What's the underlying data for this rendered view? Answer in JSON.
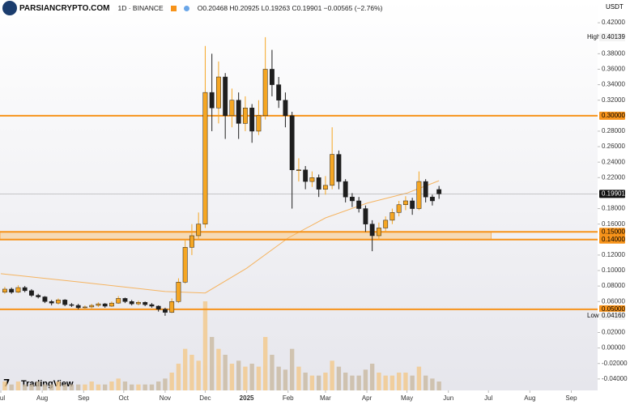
{
  "header": {
    "logo": "PARSIANCRYPTO.COM",
    "symbol": "1D · BINANCE",
    "ohlc": "O0.20468 H0.20925 L0.19263 C0.19901 −0.00565 (−2.76%)",
    "currency": "USDT",
    "brand": "TradingView"
  },
  "chart_data": {
    "type": "candlestick",
    "xlim": [
      -0.6,
      446.7
    ],
    "xticks": [
      {
        "value": 0,
        "label": "Jul"
      },
      {
        "value": 31,
        "label": "Aug"
      },
      {
        "value": 62,
        "label": "Sep"
      },
      {
        "value": 92,
        "label": "Oct"
      },
      {
        "value": 123,
        "label": "Nov"
      },
      {
        "value": 153,
        "label": "Dec"
      },
      {
        "value": 184,
        "label": "2025"
      },
      {
        "value": 215,
        "label": "Feb"
      },
      {
        "value": 243,
        "label": "Mar"
      },
      {
        "value": 274,
        "label": "Apr"
      },
      {
        "value": 304,
        "label": "May"
      },
      {
        "value": 335,
        "label": "Jun"
      },
      {
        "value": 365,
        "label": "Jul"
      },
      {
        "value": 396,
        "label": "Aug"
      },
      {
        "value": 427,
        "label": "Sep"
      }
    ],
    "ylim": [
      -0.0548,
      0.4494
    ],
    "yticks": [
      {
        "value": 0.42,
        "label": "0.42000"
      },
      {
        "value": 0.38,
        "label": "0.38000"
      },
      {
        "value": 0.36,
        "label": "0.36000"
      },
      {
        "value": 0.34,
        "label": "0.34000"
      },
      {
        "value": 0.32,
        "label": "0.32000"
      },
      {
        "value": 0.28,
        "label": "0.28000"
      },
      {
        "value": 0.26,
        "label": "0.26000"
      },
      {
        "value": 0.24,
        "label": "0.24000"
      },
      {
        "value": 0.22,
        "label": "0.22000"
      },
      {
        "value": 0.18,
        "label": "0.18000"
      },
      {
        "value": 0.16,
        "label": "0.16000"
      },
      {
        "value": 0.12,
        "label": "0.12000"
      },
      {
        "value": 0.1,
        "label": "0.10000"
      },
      {
        "value": 0.08,
        "label": "0.08000"
      },
      {
        "value": 0.06,
        "label": "0.06000"
      },
      {
        "value": 0.02,
        "label": "0.02000"
      },
      {
        "value": 0,
        "label": "0.00000"
      },
      {
        "value": -0.02,
        "label": "-0.02000"
      },
      {
        "value": -0.04,
        "label": "-0.04000"
      }
    ],
    "up_color": "#f5a623",
    "down_color": "#1e1e1e",
    "candles": {
      "x": [
        3,
        8,
        13,
        18,
        23,
        28,
        33,
        38,
        43,
        48,
        53,
        58,
        63,
        68,
        73,
        78,
        83,
        88,
        93,
        98,
        103,
        108,
        113,
        118,
        123,
        128,
        133,
        138,
        143,
        148,
        153,
        158,
        163,
        168,
        173,
        178,
        183,
        188,
        193,
        198,
        203,
        208,
        213,
        218,
        223,
        228,
        233,
        238,
        243,
        248,
        253,
        258,
        263,
        268,
        273,
        278,
        283,
        288,
        293,
        298,
        303,
        308,
        313,
        318,
        323,
        328
      ],
      "open": [
        0.072,
        0.076,
        0.072,
        0.078,
        0.074,
        0.068,
        0.066,
        0.06,
        0.058,
        0.062,
        0.056,
        0.055,
        0.052,
        0.053,
        0.055,
        0.057,
        0.054,
        0.058,
        0.064,
        0.06,
        0.057,
        0.059,
        0.056,
        0.054,
        0.05,
        0.046,
        0.06,
        0.085,
        0.13,
        0.145,
        0.16,
        0.33,
        0.31,
        0.35,
        0.3,
        0.32,
        0.29,
        0.31,
        0.28,
        0.3,
        0.36,
        0.34,
        0.32,
        0.3,
        0.23,
        0.23,
        0.215,
        0.22,
        0.205,
        0.21,
        0.25,
        0.215,
        0.195,
        0.19,
        0.18,
        0.16,
        0.145,
        0.155,
        0.165,
        0.175,
        0.185,
        0.19,
        0.18,
        0.215,
        0.195,
        0.20468
      ],
      "high": [
        0.079,
        0.078,
        0.081,
        0.08,
        0.076,
        0.07,
        0.067,
        0.062,
        0.064,
        0.063,
        0.058,
        0.057,
        0.055,
        0.057,
        0.059,
        0.058,
        0.06,
        0.067,
        0.065,
        0.062,
        0.061,
        0.06,
        0.058,
        0.055,
        0.052,
        0.064,
        0.09,
        0.14,
        0.16,
        0.175,
        0.39,
        0.38,
        0.37,
        0.355,
        0.335,
        0.33,
        0.325,
        0.315,
        0.32,
        0.40139,
        0.385,
        0.35,
        0.33,
        0.305,
        0.245,
        0.235,
        0.228,
        0.224,
        0.222,
        0.285,
        0.255,
        0.218,
        0.2,
        0.195,
        0.184,
        0.165,
        0.162,
        0.17,
        0.18,
        0.19,
        0.196,
        0.194,
        0.228,
        0.218,
        0.198,
        0.20925
      ],
      "low": [
        0.07,
        0.07,
        0.071,
        0.072,
        0.066,
        0.064,
        0.058,
        0.055,
        0.056,
        0.054,
        0.053,
        0.05,
        0.05,
        0.051,
        0.053,
        0.052,
        0.053,
        0.057,
        0.058,
        0.055,
        0.055,
        0.054,
        0.052,
        0.047,
        0.0416,
        0.045,
        0.058,
        0.083,
        0.12,
        0.14,
        0.155,
        0.28,
        0.29,
        0.27,
        0.285,
        0.27,
        0.28,
        0.265,
        0.275,
        0.295,
        0.325,
        0.31,
        0.285,
        0.18,
        0.215,
        0.205,
        0.208,
        0.195,
        0.198,
        0.205,
        0.205,
        0.188,
        0.182,
        0.175,
        0.15,
        0.125,
        0.14,
        0.15,
        0.16,
        0.17,
        0.178,
        0.172,
        0.178,
        0.188,
        0.184,
        0.19263
      ],
      "close": [
        0.076,
        0.072,
        0.078,
        0.074,
        0.068,
        0.066,
        0.06,
        0.058,
        0.062,
        0.056,
        0.055,
        0.052,
        0.053,
        0.055,
        0.057,
        0.054,
        0.058,
        0.064,
        0.06,
        0.057,
        0.059,
        0.056,
        0.054,
        0.05,
        0.046,
        0.06,
        0.085,
        0.13,
        0.145,
        0.16,
        0.33,
        0.31,
        0.35,
        0.3,
        0.32,
        0.29,
        0.31,
        0.28,
        0.3,
        0.36,
        0.34,
        0.32,
        0.3,
        0.23,
        0.23,
        0.215,
        0.22,
        0.205,
        0.21,
        0.25,
        0.215,
        0.195,
        0.19,
        0.18,
        0.16,
        0.145,
        0.155,
        0.165,
        0.175,
        0.185,
        0.19,
        0.18,
        0.215,
        0.195,
        0.19,
        0.19901
      ],
      "volume": [
        3,
        2,
        3,
        2,
        2,
        3,
        2,
        2,
        3,
        2,
        2,
        2,
        2,
        3,
        2,
        2,
        3,
        4,
        3,
        2,
        2,
        2,
        2,
        3,
        4,
        6,
        9,
        14,
        12,
        10,
        30,
        18,
        14,
        12,
        9,
        10,
        8,
        9,
        8,
        18,
        12,
        8,
        7,
        14,
        8,
        6,
        5,
        5,
        6,
        10,
        8,
        6,
        5,
        5,
        7,
        9,
        6,
        5,
        5,
        6,
        6,
        5,
        8,
        5,
        4,
        3
      ]
    },
    "ma": {
      "color": "#f5b461",
      "x": [
        0,
        60,
        123,
        153,
        184,
        215,
        243,
        274,
        304,
        328
      ],
      "values": [
        0.096,
        0.085,
        0.073,
        0.071,
        0.103,
        0.142,
        0.168,
        0.187,
        0.2,
        0.216
      ]
    },
    "zone": {
      "low": 0.14,
      "high": 0.15,
      "x": [
        -0.6,
        367
      ],
      "color": "#f6d4a6"
    },
    "levels": [
      {
        "value": 0.3,
        "label": "0.30000"
      },
      {
        "value": 0.15,
        "label": "0.15000"
      },
      {
        "value": 0.14,
        "label": "0.14000"
      },
      {
        "value": 0.05,
        "label": "0.05000"
      }
    ],
    "level_color": "#f7931a",
    "last": {
      "value": 0.19901,
      "label": "0.19901"
    },
    "high_mark": {
      "text": "High",
      "value": 0.40139,
      "label": "0.40139"
    },
    "low_mark": {
      "text": "Low",
      "value": 0.0416,
      "label": "0.04160"
    }
  }
}
